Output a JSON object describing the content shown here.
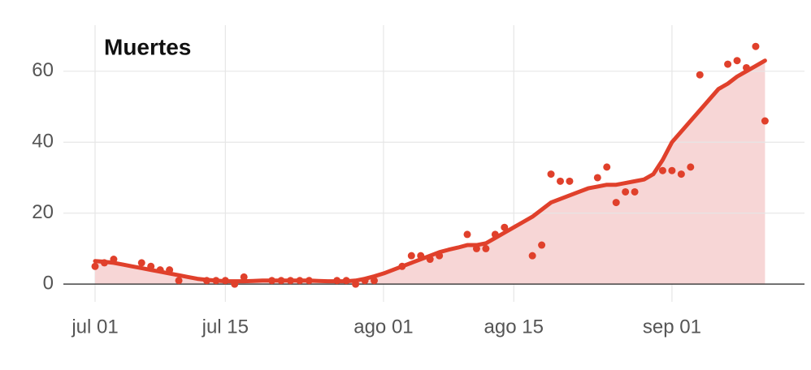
{
  "chart_data": {
    "type": "line",
    "title": "Muertes",
    "categories": [
      "jul 01",
      null,
      null,
      null,
      null,
      null,
      null,
      null,
      null,
      null,
      null,
      null,
      null,
      null,
      "jul 15",
      null,
      null,
      null,
      null,
      null,
      null,
      null,
      null,
      null,
      null,
      null,
      null,
      null,
      null,
      null,
      null,
      "ago 01",
      null,
      null,
      null,
      null,
      null,
      null,
      null,
      null,
      null,
      null,
      null,
      null,
      null,
      "ago 15",
      null,
      null,
      null,
      null,
      null,
      null,
      null,
      null,
      null,
      null,
      null,
      null,
      null,
      null,
      null,
      null,
      "sep 01",
      null,
      null,
      null,
      null,
      null,
      null,
      null,
      null,
      null,
      null
    ],
    "series": [
      {
        "type": "scatter",
        "color": "#e0402b",
        "values": [
          5,
          6,
          7,
          null,
          null,
          6,
          5,
          4,
          4,
          1,
          null,
          null,
          1,
          1,
          1,
          0,
          2,
          null,
          null,
          1,
          1,
          1,
          1,
          1,
          null,
          null,
          1,
          1,
          0,
          1,
          1,
          null,
          null,
          5,
          8,
          8,
          7,
          8,
          null,
          null,
          14,
          10,
          10,
          14,
          16,
          null,
          null,
          8,
          11,
          31,
          29,
          29,
          null,
          null,
          30,
          33,
          23,
          26,
          26,
          null,
          null,
          32,
          32,
          31,
          33,
          59,
          null,
          null,
          62,
          63,
          61,
          67,
          46
        ]
      },
      {
        "type": "line",
        "color": "#e0402b",
        "area_color": "#f7d6d6",
        "values": [
          6.5,
          6.3,
          6,
          5.5,
          5,
          4.5,
          4,
          3.5,
          3,
          2.5,
          2,
          1.5,
          1.2,
          1,
          0.8,
          0.8,
          0.8,
          0.9,
          1,
          1,
          1,
          1,
          1,
          1,
          0.9,
          0.8,
          0.8,
          0.8,
          1,
          1.5,
          2.2,
          3,
          4,
          5,
          6,
          7,
          8,
          9,
          9.7,
          10.3,
          11,
          11,
          11.5,
          13,
          14.5,
          16,
          17.5,
          19,
          21,
          23,
          24,
          25,
          26,
          27,
          27.5,
          28,
          28,
          28.5,
          29,
          29.5,
          31,
          35,
          40,
          43,
          46,
          49,
          52,
          55,
          56.5,
          58.5,
          60,
          61.5,
          63
        ]
      }
    ],
    "ylim": [
      -5,
      73
    ],
    "yticks": [
      0,
      20,
      40,
      60
    ],
    "grid": true
  }
}
